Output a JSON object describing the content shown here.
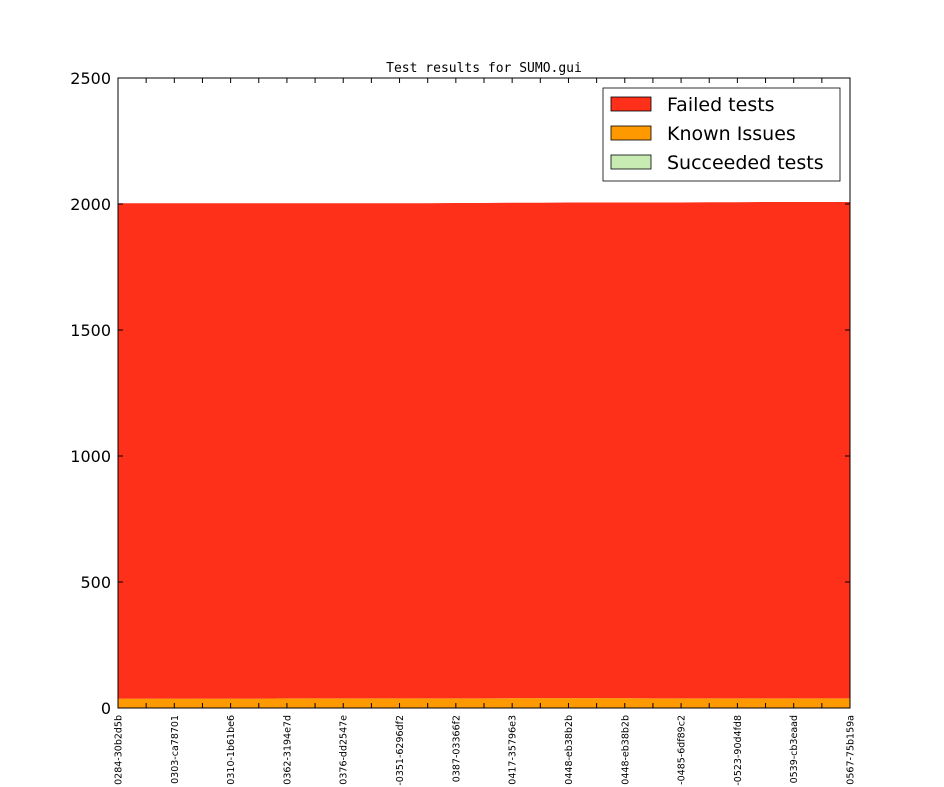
{
  "chart_data": {
    "type": "area",
    "stacked": true,
    "title": "Test results for SUMO.gui",
    "xlabel": "",
    "ylabel": "",
    "ylim": [
      0,
      2500
    ],
    "yticks": [
      0,
      500,
      1000,
      1500,
      2000,
      2500
    ],
    "grid": false,
    "legend_position": "top-right",
    "categories": [
      "0284-30b2d5b",
      "",
      "0303-ca78701",
      "",
      "0310-1b61be6",
      "",
      "0362-3194e7d",
      "",
      "0376-dd2547e",
      "",
      "-0351-6296df2",
      "",
      "0387-03366f2",
      "",
      "0417-35796e3",
      "",
      "0448-eb38b2b",
      "",
      "0448-eb38b2b",
      "",
      "-0485-6df89c2",
      "",
      "-0523-90d4fd8",
      "",
      "0539-cb3eaad",
      "",
      "0567-75b159a"
    ],
    "series": [
      {
        "name": "Succeeded tests",
        "color": "#c8ebb4",
        "values": [
          2,
          2,
          2,
          2,
          2,
          2,
          2,
          2,
          2,
          2,
          2,
          2,
          2,
          2,
          2,
          2,
          2,
          2,
          2,
          2,
          2,
          2,
          2,
          2,
          2,
          2,
          2
        ]
      },
      {
        "name": "Known Issues",
        "color": "#ff9900",
        "values": [
          35,
          35,
          35,
          35,
          35,
          35,
          36,
          36,
          36,
          36,
          36,
          36,
          36,
          36,
          37,
          37,
          37,
          37,
          37,
          36,
          36,
          36,
          36,
          36,
          36,
          36,
          36
        ]
      },
      {
        "name": "Failed tests",
        "color": "#ff3019",
        "values": [
          1966,
          1966,
          1966,
          1966,
          1966,
          1966,
          1965,
          1965,
          1965,
          1965,
          1965,
          1965,
          1966,
          1966,
          1966,
          1966,
          1967,
          1967,
          1967,
          1968,
          1968,
          1969,
          1969,
          1970,
          1970,
          1970,
          1970
        ]
      }
    ]
  }
}
